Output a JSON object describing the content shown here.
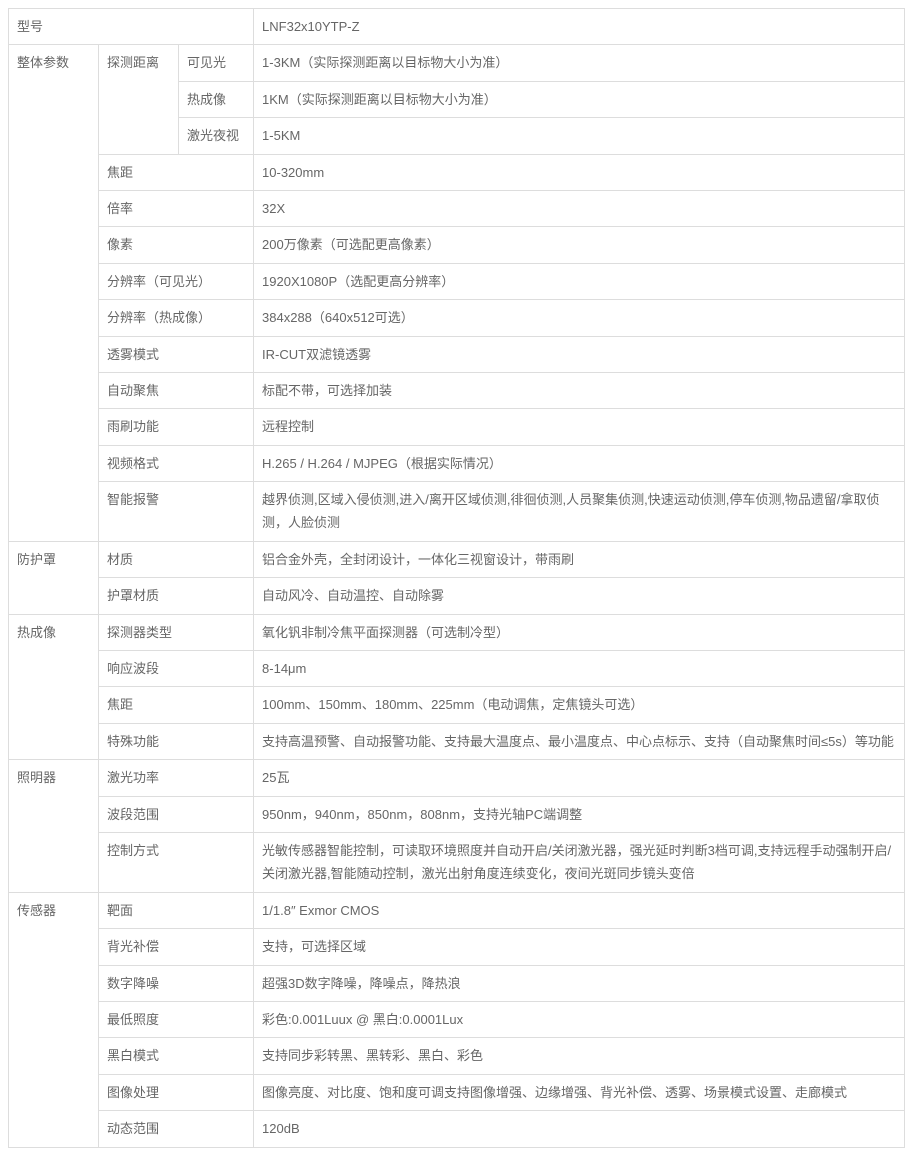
{
  "model": {
    "label": "型号",
    "value": "LNF32x10YTP-Z"
  },
  "overall": {
    "label": "整体参数",
    "detect": {
      "label": "探测距离",
      "visible": {
        "label": "可见光",
        "value": "1-3KM（实际探测距离以目标物大小为准）"
      },
      "thermal": {
        "label": "热成像",
        "value": "1KM（实际探测距离以目标物大小为准）"
      },
      "laser": {
        "label": "激光夜视",
        "value": "1-5KM"
      }
    },
    "focal": {
      "label": "焦距",
      "value": "10-320mm"
    },
    "zoom": {
      "label": "倍率",
      "value": "32X"
    },
    "pixel": {
      "label": "像素",
      "value": "200万像素（可选配更高像素）"
    },
    "resVis": {
      "label": "分辨率（可见光）",
      "value": "1920X1080P（选配更高分辨率）"
    },
    "resTh": {
      "label": "分辨率（热成像）",
      "value": "384x288（640x512可选）"
    },
    "defog": {
      "label": "透雾模式",
      "value": "IR-CUT双滤镜透雾"
    },
    "af": {
      "label": "自动聚焦",
      "value": "标配不带，可选择加装"
    },
    "wiper": {
      "label": "雨刷功能",
      "value": "远程控制"
    },
    "video": {
      "label": "视频格式",
      "value": "H.265 / H.264 / MJPEG（根据实际情况）"
    },
    "alarm": {
      "label": "智能报警",
      "value": "越界侦测,区域入侵侦测,进入/离开区域侦测,徘徊侦测,人员聚集侦测,快速运动侦测,停车侦测,物品遗留/拿取侦测，人脸侦测"
    }
  },
  "housing": {
    "label": "防护罩",
    "material": {
      "label": "材质",
      "value": "铝合金外壳，全封闭设计，一体化三视窗设计，带雨刷"
    },
    "cover": {
      "label": "护罩材质",
      "value": "自动风冷、自动温控、自动除雾"
    }
  },
  "thermal": {
    "label": "热成像",
    "detector": {
      "label": "探测器类型",
      "value": "氧化钒非制冷焦平面探测器（可选制冷型）"
    },
    "band": {
      "label": "响应波段",
      "value": "8-14μm"
    },
    "focal": {
      "label": "焦距",
      "value": "100mm、150mm、180mm、225mm（电动调焦，定焦镜头可选）"
    },
    "special": {
      "label": "特殊功能",
      "value": "支持高温预警、自动报警功能、支持最大温度点、最小温度点、中心点标示、支持（自动聚焦时间≤5s）等功能"
    }
  },
  "illum": {
    "label": "照明器",
    "power": {
      "label": "激光功率",
      "value": "25瓦"
    },
    "band": {
      "label": "波段范围",
      "value": "950nm，940nm，850nm，808nm，支持光轴PC端调整"
    },
    "control": {
      "label": "控制方式",
      "value": "光敏传感器智能控制，可读取环境照度并自动开启/关闭激光器，强光延时判断3档可调,支持远程手动强制开启/关闭激光器,智能随动控制，激光出射角度连续变化，夜间光斑同步镜头变倍"
    }
  },
  "sensor": {
    "label": "传感器",
    "target": {
      "label": "靶面",
      "value": "1/1.8″ Exmor CMOS"
    },
    "blc": {
      "label": "背光补偿",
      "value": "支持，可选择区域"
    },
    "dnr": {
      "label": "数字降噪",
      "value": "超强3D数字降噪，降噪点，降热浪"
    },
    "minlux": {
      "label": "最低照度",
      "value": "彩色:0.001Luux @ 黑白:0.0001Lux"
    },
    "bw": {
      "label": "黑白模式",
      "value": "支持同步彩转黑、黑转彩、黑白、彩色"
    },
    "imgproc": {
      "label": "图像处理",
      "value": "图像亮度、对比度、饱和度可调支持图像增强、边缘增强、背光补偿、透雾、场景模式设置、走廊模式"
    },
    "dr": {
      "label": "动态范围",
      "value": "120dB"
    }
  }
}
